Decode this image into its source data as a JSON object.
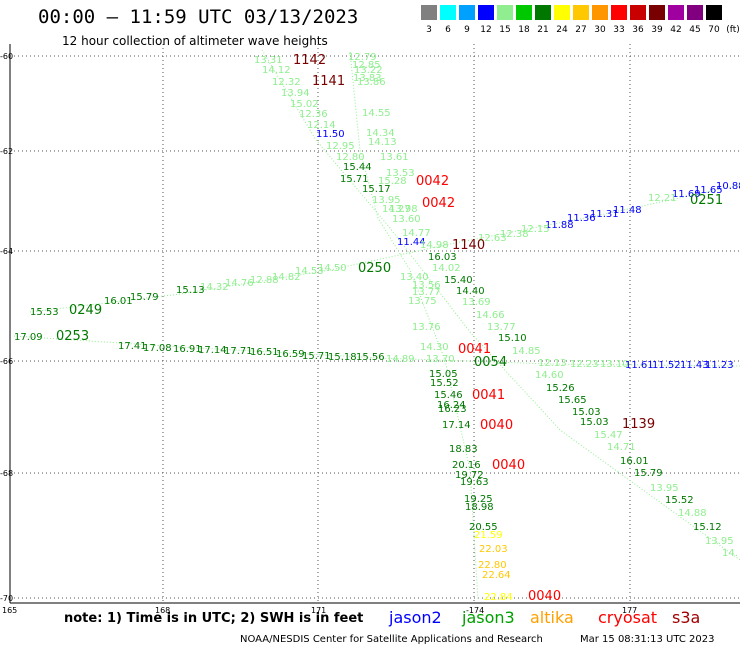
{
  "header": {
    "title": "00:00 – 11:59 UTC 03/13/2023",
    "subtitle": "12 hour collection of altimeter wave heights"
  },
  "legend": {
    "unit": "(ft)",
    "items": [
      {
        "label": "3",
        "color": "#808080"
      },
      {
        "label": "6",
        "color": "#00ffff"
      },
      {
        "label": "9",
        "color": "#00a0ff"
      },
      {
        "label": "12",
        "color": "#0000ff"
      },
      {
        "label": "15",
        "color": "#90ee90"
      },
      {
        "label": "18",
        "color": "#00c800"
      },
      {
        "label": "21",
        "color": "#007800"
      },
      {
        "label": "24",
        "color": "#ffff00"
      },
      {
        "label": "27",
        "color": "#ffc800"
      },
      {
        "label": "30",
        "color": "#ff9600"
      },
      {
        "label": "33",
        "color": "#ff0000"
      },
      {
        "label": "36",
        "color": "#c80000"
      },
      {
        "label": "39",
        "color": "#780000"
      },
      {
        "label": "42",
        "color": "#a000a0"
      },
      {
        "label": "45",
        "color": "#800080"
      },
      {
        "label": "70",
        "color": "#000000"
      }
    ]
  },
  "map": {
    "lat_labels": [
      "-60",
      "-62",
      "-64",
      "-66",
      "-68",
      "-70"
    ],
    "lon_labels": [
      "165",
      "168",
      "171",
      "-174",
      "177"
    ]
  },
  "tracks": {
    "times": [
      {
        "text": "1142",
        "color": "#780000"
      },
      {
        "text": "1141",
        "color": "#780000"
      },
      {
        "text": "0042",
        "color": "#ff0000"
      },
      {
        "text": "0042",
        "color": "#ff0000"
      },
      {
        "text": "1140",
        "color": "#780000"
      },
      {
        "text": "0251",
        "color": "#007800"
      },
      {
        "text": "0250",
        "color": "#007800"
      },
      {
        "text": "0249",
        "color": "#007800"
      },
      {
        "text": "0253",
        "color": "#007800"
      },
      {
        "text": "0041",
        "color": "#ff0000"
      },
      {
        "text": "0054",
        "color": "#007800"
      },
      {
        "text": "0041",
        "color": "#ff0000"
      },
      {
        "text": "0040",
        "color": "#ff0000"
      },
      {
        "text": "1139",
        "color": "#780000"
      },
      {
        "text": "0040",
        "color": "#ff0000"
      },
      {
        "text": "0040",
        "color": "#ff0000"
      }
    ],
    "values": [
      {
        "text": "13.31",
        "color": "#90ee90"
      },
      {
        "text": "14.12",
        "color": "#90ee90"
      },
      {
        "text": "12.32",
        "color": "#90ee90"
      },
      {
        "text": "13.94",
        "color": "#90ee90"
      },
      {
        "text": "15.02",
        "color": "#90ee90"
      },
      {
        "text": "12.36",
        "color": "#90ee90"
      },
      {
        "text": "12.14",
        "color": "#90ee90"
      },
      {
        "text": "11.50",
        "color": "#0000ff"
      },
      {
        "text": "12.95",
        "color": "#90ee90"
      },
      {
        "text": "12.80",
        "color": "#90ee90"
      },
      {
        "text": "15.44",
        "color": "#007800"
      },
      {
        "text": "15.71",
        "color": "#007800"
      },
      {
        "text": "15.17",
        "color": "#007800"
      },
      {
        "text": "13.95",
        "color": "#90ee90"
      },
      {
        "text": "14.27",
        "color": "#90ee90"
      },
      {
        "text": "12.79",
        "color": "#90ee90"
      },
      {
        "text": "12.85",
        "color": "#90ee90"
      },
      {
        "text": "13.22",
        "color": "#90ee90"
      },
      {
        "text": "13.83",
        "color": "#90ee90"
      },
      {
        "text": "13.86",
        "color": "#90ee90"
      },
      {
        "text": "14.55",
        "color": "#90ee90"
      },
      {
        "text": "14.34",
        "color": "#90ee90"
      },
      {
        "text": "14.13",
        "color": "#90ee90"
      },
      {
        "text": "13.53",
        "color": "#90ee90"
      },
      {
        "text": "13.61",
        "color": "#90ee90"
      },
      {
        "text": "15.28",
        "color": "#90ee90"
      },
      {
        "text": "13.98",
        "color": "#90ee90"
      },
      {
        "text": "13.60",
        "color": "#90ee90"
      },
      {
        "text": "14.77",
        "color": "#90ee90"
      },
      {
        "text": "11.44",
        "color": "#0000ff"
      },
      {
        "text": "14.98",
        "color": "#90ee90"
      },
      {
        "text": "16.03",
        "color": "#007800"
      },
      {
        "text": "14.02",
        "color": "#90ee90"
      },
      {
        "text": "15.40",
        "color": "#007800"
      },
      {
        "text": "14.40",
        "color": "#007800"
      },
      {
        "text": "13.69",
        "color": "#90ee90"
      },
      {
        "text": "14.66",
        "color": "#90ee90"
      },
      {
        "text": "13.77",
        "color": "#90ee90"
      },
      {
        "text": "15.10",
        "color": "#007800"
      },
      {
        "text": "14.85",
        "color": "#90ee90"
      },
      {
        "text": "14.60",
        "color": "#90ee90"
      },
      {
        "text": "15.26",
        "color": "#007800"
      },
      {
        "text": "15.65",
        "color": "#007800"
      },
      {
        "text": "15.03",
        "color": "#007800"
      },
      {
        "text": "15.03",
        "color": "#007800"
      },
      {
        "text": "15.47",
        "color": "#90ee90"
      },
      {
        "text": "14.71",
        "color": "#90ee90"
      },
      {
        "text": "16.01",
        "color": "#007800"
      },
      {
        "text": "15.79",
        "color": "#007800"
      },
      {
        "text": "13.95",
        "color": "#90ee90"
      },
      {
        "text": "15.52",
        "color": "#007800"
      },
      {
        "text": "14.88",
        "color": "#90ee90"
      },
      {
        "text": "15.12",
        "color": "#007800"
      },
      {
        "text": "13.95",
        "color": "#90ee90"
      },
      {
        "text": "14.",
        "color": "#90ee90"
      },
      {
        "text": "10.88",
        "color": "#0000ff"
      },
      {
        "text": "11.65",
        "color": "#0000ff"
      },
      {
        "text": "11.69",
        "color": "#0000ff"
      },
      {
        "text": "12.21",
        "color": "#90ee90"
      },
      {
        "text": "11.48",
        "color": "#0000ff"
      },
      {
        "text": "11.31",
        "color": "#0000ff"
      },
      {
        "text": "11.36",
        "color": "#0000ff"
      },
      {
        "text": "11.88",
        "color": "#0000ff"
      },
      {
        "text": "12.15",
        "color": "#90ee90"
      },
      {
        "text": "12.38",
        "color": "#90ee90"
      },
      {
        "text": "12.63",
        "color": "#90ee90"
      },
      {
        "text": "14.50",
        "color": "#90ee90"
      },
      {
        "text": "14.53",
        "color": "#90ee90"
      },
      {
        "text": "14.82",
        "color": "#90ee90"
      },
      {
        "text": "12.88",
        "color": "#90ee90"
      },
      {
        "text": "14.76",
        "color": "#90ee90"
      },
      {
        "text": "14.32",
        "color": "#90ee90"
      },
      {
        "text": "15.13",
        "color": "#007800"
      },
      {
        "text": "15.79",
        "color": "#007800"
      },
      {
        "text": "16.01",
        "color": "#007800"
      },
      {
        "text": "15.53",
        "color": "#007800"
      },
      {
        "text": "13.40",
        "color": "#90ee90"
      },
      {
        "text": "13.56",
        "color": "#90ee90"
      },
      {
        "text": "13.77",
        "color": "#90ee90"
      },
      {
        "text": "13.75",
        "color": "#90ee90"
      },
      {
        "text": "13.76",
        "color": "#90ee90"
      },
      {
        "text": "17.09",
        "color": "#007800"
      },
      {
        "text": "17.41",
        "color": "#007800"
      },
      {
        "text": "17.08",
        "color": "#007800"
      },
      {
        "text": "16.91",
        "color": "#007800"
      },
      {
        "text": "17.14",
        "color": "#007800"
      },
      {
        "text": "17.71",
        "color": "#007800"
      },
      {
        "text": "16.51",
        "color": "#007800"
      },
      {
        "text": "16.59",
        "color": "#007800"
      },
      {
        "text": "15.71",
        "color": "#007800"
      },
      {
        "text": "15.18",
        "color": "#007800"
      },
      {
        "text": "15.56",
        "color": "#007800"
      },
      {
        "text": "14.89",
        "color": "#90ee90"
      },
      {
        "text": "14.30",
        "color": "#90ee90"
      },
      {
        "text": "13.70",
        "color": "#90ee90"
      },
      {
        "text": "12.13",
        "color": "#90ee90"
      },
      {
        "text": "12.23",
        "color": "#90ee90"
      },
      {
        "text": "13.10",
        "color": "#90ee90"
      },
      {
        "text": "11.61",
        "color": "#0000ff"
      },
      {
        "text": "11.52",
        "color": "#0000ff"
      },
      {
        "text": "11.43",
        "color": "#0000ff"
      },
      {
        "text": "11.23",
        "color": "#0000ff"
      },
      {
        "text": "15.05",
        "color": "#007800"
      },
      {
        "text": "15.52",
        "color": "#007800"
      },
      {
        "text": "15.46",
        "color": "#007800"
      },
      {
        "text": "16.24",
        "color": "#007800"
      },
      {
        "text": "16.23",
        "color": "#007800"
      },
      {
        "text": "17.14",
        "color": "#007800"
      },
      {
        "text": "18.83",
        "color": "#007800"
      },
      {
        "text": "20.16",
        "color": "#007800"
      },
      {
        "text": "19.72",
        "color": "#007800"
      },
      {
        "text": "19.63",
        "color": "#007800"
      },
      {
        "text": "19.25",
        "color": "#007800"
      },
      {
        "text": "18.98",
        "color": "#007800"
      },
      {
        "text": "20.55",
        "color": "#007800"
      },
      {
        "text": "21.59",
        "color": "#ffff00"
      },
      {
        "text": "22.03",
        "color": "#ffc800"
      },
      {
        "text": "22.80",
        "color": "#ffc800"
      },
      {
        "text": "22.64",
        "color": "#ffc800"
      },
      {
        "text": "22.84",
        "color": "#ffff00"
      }
    ]
  },
  "footer": {
    "note": "note: 1) Time is in UTC; 2) SWH is in feet",
    "satellites": [
      {
        "name": "jason2",
        "color": "#0000ff"
      },
      {
        "name": "jason3",
        "color": "#00a000"
      },
      {
        "name": "altika",
        "color": "#ffa000"
      },
      {
        "name": "cryosat",
        "color": "#ff0000"
      },
      {
        "name": "s3a",
        "color": "#a00000"
      }
    ],
    "credit": "NOAA/NESDIS Center for Satellite Applications and Research",
    "timestamp": "Mar 15 08:31:13 UTC 2023"
  }
}
